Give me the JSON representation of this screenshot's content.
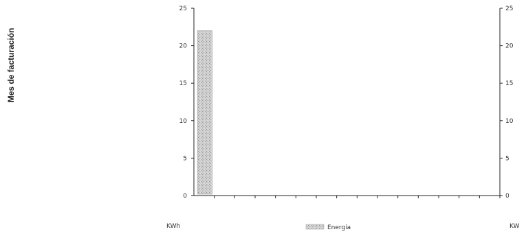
{
  "chart_data": {
    "type": "bar",
    "title": "",
    "ylabel": "Mes de facturación",
    "xlabel": "",
    "left_unit": "KWh",
    "right_unit": "KW",
    "ylim": [
      0,
      25
    ],
    "yticks": [
      0,
      5,
      10,
      15,
      20,
      25
    ],
    "y2lim": [
      0,
      25
    ],
    "y2ticks": [
      0,
      5,
      10,
      15,
      20,
      25
    ],
    "category_count": 15,
    "categories": [
      "",
      "",
      "",
      "",
      "",
      "",
      "",
      "",
      "",
      "",
      "",
      "",
      "",
      "",
      ""
    ],
    "series": [
      {
        "name": "Energía",
        "axis": "left",
        "values": [
          22,
          null,
          null,
          null,
          null,
          null,
          null,
          null,
          null,
          null,
          null,
          null,
          null,
          null,
          null
        ]
      }
    ],
    "legend": {
      "position": "bottom",
      "entries": [
        "Energía"
      ]
    },
    "grid": false,
    "colors": {
      "bar_fill": "#bdbdbd",
      "bar_stroke": "#9a9a9a",
      "axis": "#222222"
    }
  }
}
